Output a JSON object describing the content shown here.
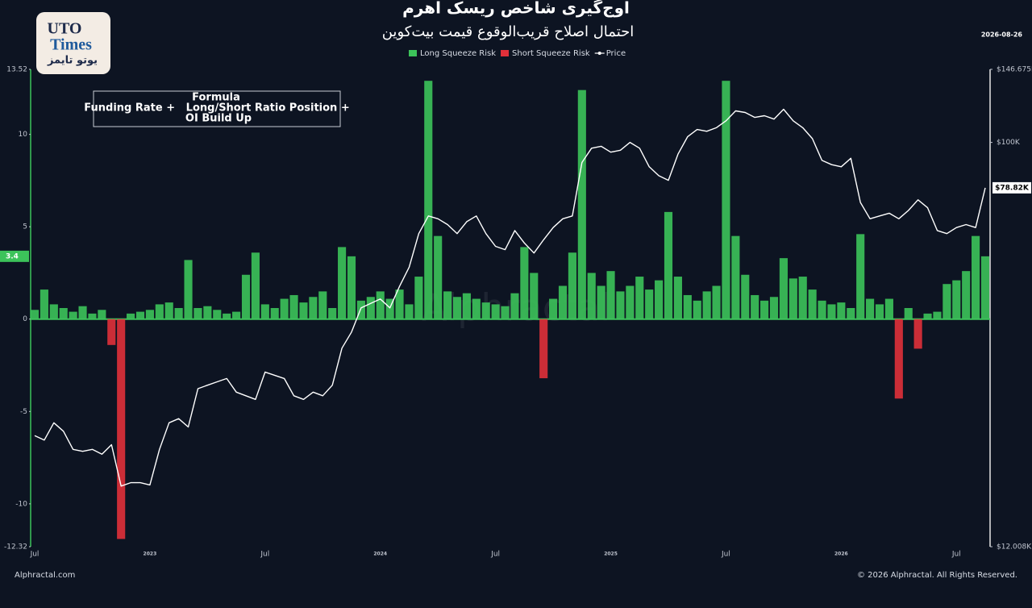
{
  "chart_data": {
    "type": "bar",
    "title": "اوج‌گیری شاخص ریسک اهرم",
    "subtitle": "احتمال اصلاح قریب‌الوقوع قیمت بیت‌کوین",
    "date": "2026-08-26",
    "formula": [
      "Formula",
      "Funding Rate +   Long/Short Ratio Position +",
      "OI Build Up"
    ],
    "logo": [
      "UTO",
      "Times",
      "یوتو تایمز"
    ],
    "watermark": "Alphractal",
    "source": "Alphractal.com",
    "copyright": "© 2026 Alphractal. All Rights Reserved.",
    "legend": "top",
    "grid": false,
    "categories": [
      "Jul",
      null,
      null,
      null,
      null,
      null,
      null,
      null,
      null,
      null,
      null,
      null,
      "2023",
      null,
      null,
      null,
      null,
      null,
      null,
      null,
      null,
      null,
      null,
      null,
      "Jul",
      null,
      null,
      null,
      null,
      null,
      null,
      null,
      null,
      null,
      null,
      null,
      "2024",
      null,
      null,
      null,
      null,
      null,
      null,
      null,
      null,
      null,
      null,
      null,
      "Jul",
      null,
      null,
      null,
      null,
      null,
      null,
      null,
      null,
      null,
      null,
      null,
      "2025",
      null,
      null,
      null,
      null,
      null,
      null,
      null,
      null,
      null,
      null,
      null,
      "Jul",
      null,
      null,
      null,
      null,
      null,
      null,
      null,
      null,
      null,
      null,
      null,
      "2026",
      null,
      null,
      null,
      null,
      null,
      null,
      null,
      null,
      null,
      null,
      null,
      "Jul",
      null,
      null,
      null
    ],
    "ylim": [
      -12.32,
      13.52
    ],
    "yticks": [
      -12.32,
      -10,
      -5,
      0,
      5,
      10,
      13.52
    ],
    "y2lim": [
      12008,
      146675
    ],
    "y2log": true,
    "y2ticks": [
      {
        "value": 12008,
        "label": "$12.008K"
      },
      {
        "value": 100000,
        "label": "$100K"
      },
      {
        "value": 146675,
        "label": "$146.675K"
      }
    ],
    "series": [
      {
        "name": "Long Squeeze Risk",
        "color": "#3cc35a",
        "values": [
          0.5,
          1.6,
          0.8,
          0.6,
          0.4,
          0.7,
          0.3,
          0.5,
          null,
          null,
          0.3,
          0.4,
          0.5,
          0.8,
          0.9,
          0.6,
          3.2,
          0.6,
          0.7,
          0.5,
          0.3,
          0.4,
          2.4,
          3.6,
          0.8,
          0.6,
          1.1,
          1.3,
          0.9,
          1.2,
          1.5,
          0.6,
          3.9,
          3.4,
          1.0,
          1.2,
          1.5,
          1.1,
          1.6,
          0.8,
          2.3,
          12.9,
          4.5,
          1.5,
          1.2,
          1.4,
          1.1,
          0.9,
          0.8,
          0.7,
          1.4,
          3.9,
          2.5,
          null,
          1.1,
          1.8,
          3.6,
          12.4,
          2.5,
          1.8,
          2.6,
          1.5,
          1.8,
          2.3,
          1.6,
          2.1,
          5.8,
          2.3,
          1.3,
          1.0,
          1.5,
          1.8,
          12.9,
          4.5,
          2.4,
          1.3,
          1.0,
          1.2,
          3.3,
          2.2,
          2.3,
          1.6,
          1.0,
          0.8,
          0.9,
          0.6,
          4.6,
          1.1,
          0.8,
          1.1,
          null,
          0.6,
          null,
          0.3,
          0.4,
          1.9,
          2.1,
          2.6,
          4.5,
          3.4
        ]
      },
      {
        "name": "Short Squeeze Risk",
        "color": "#e0303a",
        "values": [
          null,
          null,
          null,
          null,
          null,
          null,
          null,
          null,
          -1.4,
          -11.9,
          null,
          null,
          null,
          null,
          null,
          null,
          null,
          null,
          null,
          null,
          null,
          null,
          null,
          null,
          null,
          null,
          null,
          null,
          null,
          null,
          null,
          null,
          null,
          null,
          null,
          null,
          null,
          null,
          null,
          null,
          null,
          null,
          null,
          null,
          null,
          null,
          null,
          null,
          null,
          null,
          null,
          null,
          null,
          -3.2,
          null,
          null,
          null,
          null,
          null,
          null,
          null,
          null,
          null,
          null,
          null,
          null,
          null,
          null,
          null,
          null,
          null,
          null,
          null,
          null,
          null,
          null,
          null,
          null,
          null,
          null,
          null,
          null,
          null,
          null,
          null,
          null,
          null,
          null,
          null,
          null,
          -4.3,
          null,
          -1.6,
          null,
          null,
          null,
          null,
          null,
          null,
          null
        ]
      },
      {
        "name": "Price",
        "color": "#ffffff",
        "type": "line",
        "axis": "y2",
        "values": [
          21500,
          21000,
          23000,
          22000,
          20000,
          19800,
          20000,
          19500,
          20500,
          16500,
          16800,
          16800,
          16600,
          20000,
          23000,
          23500,
          22500,
          27500,
          28000,
          28500,
          29000,
          27000,
          26500,
          26000,
          30000,
          29500,
          29000,
          26500,
          26000,
          27000,
          26500,
          28000,
          34000,
          37000,
          42000,
          43000,
          44000,
          42000,
          47000,
          52000,
          62000,
          68000,
          67000,
          65000,
          62000,
          66000,
          68000,
          62000,
          58000,
          57000,
          63000,
          59000,
          56000,
          60000,
          64000,
          67000,
          68000,
          90000,
          97000,
          98000,
          95000,
          96000,
          100000,
          97000,
          88000,
          84000,
          82000,
          94000,
          103000,
          107000,
          106000,
          108000,
          112000,
          118000,
          117000,
          114000,
          115000,
          113000,
          119000,
          112000,
          108000,
          102000,
          91000,
          89000,
          88000,
          92000,
          73000,
          67000,
          68000,
          69000,
          67000,
          70000,
          74000,
          71000,
          63000,
          62000,
          64000,
          65000,
          64000,
          78820
        ]
      }
    ],
    "markers": [
      {
        "value": 3.4,
        "color": "#3cc35a"
      },
      {
        "value": 78820,
        "label": "$78.82K",
        "axis": "y2"
      }
    ]
  }
}
